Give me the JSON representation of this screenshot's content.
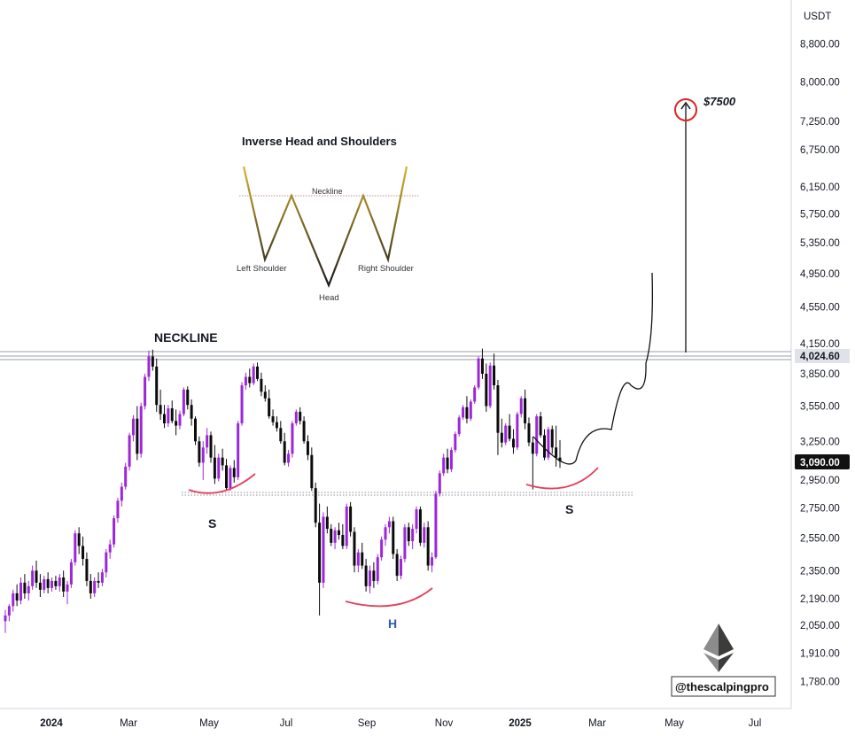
{
  "chart_data": {
    "type": "candlestick",
    "price_axis": {
      "unit_label": "USDT",
      "ticks": [
        "8,800.00",
        "8,000.00",
        "7,250.00",
        "6,750.00",
        "6,150.00",
        "5,750.00",
        "5,350.00",
        "4,950.00",
        "4,550.00",
        "4,150.00",
        "3,850.00",
        "3,550.00",
        "3,250.00",
        "2,950.00",
        "2,750.00",
        "2,550.00",
        "2,350.00",
        "2,190.00",
        "2,050.00",
        "1,910.00",
        "1,780.00"
      ],
      "scale": "log",
      "range": [
        1700,
        9300
      ]
    },
    "time_axis": {
      "ticks": [
        {
          "label": "2024",
          "bold": true
        },
        {
          "label": "Mar",
          "bold": false
        },
        {
          "label": "May",
          "bold": false
        },
        {
          "label": "Jul",
          "bold": false
        },
        {
          "label": "Sep",
          "bold": false
        },
        {
          "label": "Nov",
          "bold": false
        },
        {
          "label": "2025",
          "bold": true
        },
        {
          "label": "Mar",
          "bold": false
        },
        {
          "label": "May",
          "bold": false
        },
        {
          "label": "Jul",
          "bold": false
        }
      ]
    },
    "price_labels": {
      "neckline": "4,024.60",
      "last": "3,090.00"
    },
    "neckline_price": 4024.6,
    "target_price": 7500,
    "support_price": 2860,
    "candles": [
      [
        2070,
        2130,
        2010,
        2100
      ],
      [
        2100,
        2160,
        2070,
        2150
      ],
      [
        2150,
        2240,
        2120,
        2220
      ],
      [
        2220,
        2270,
        2150,
        2180
      ],
      [
        2180,
        2310,
        2160,
        2280
      ],
      [
        2280,
        2330,
        2190,
        2220
      ],
      [
        2220,
        2290,
        2180,
        2260
      ],
      [
        2260,
        2380,
        2240,
        2350
      ],
      [
        2350,
        2410,
        2250,
        2280
      ],
      [
        2280,
        2330,
        2200,
        2240
      ],
      [
        2240,
        2320,
        2220,
        2300
      ],
      [
        2300,
        2340,
        2220,
        2250
      ],
      [
        2250,
        2310,
        2230,
        2290
      ],
      [
        2290,
        2320,
        2240,
        2260
      ],
      [
        2260,
        2330,
        2230,
        2310
      ],
      [
        2310,
        2350,
        2200,
        2230
      ],
      [
        2230,
        2290,
        2160,
        2270
      ],
      [
        2270,
        2420,
        2250,
        2400
      ],
      [
        2400,
        2600,
        2380,
        2580
      ],
      [
        2580,
        2620,
        2450,
        2500
      ],
      [
        2500,
        2560,
        2380,
        2420
      ],
      [
        2420,
        2460,
        2260,
        2290
      ],
      [
        2290,
        2330,
        2190,
        2220
      ],
      [
        2220,
        2310,
        2200,
        2290
      ],
      [
        2290,
        2340,
        2250,
        2280
      ],
      [
        2280,
        2360,
        2260,
        2340
      ],
      [
        2340,
        2480,
        2310,
        2460
      ],
      [
        2460,
        2540,
        2420,
        2510
      ],
      [
        2510,
        2700,
        2490,
        2680
      ],
      [
        2680,
        2820,
        2650,
        2800
      ],
      [
        2800,
        2930,
        2760,
        2900
      ],
      [
        2900,
        3080,
        2880,
        3050
      ],
      [
        3050,
        3320,
        3020,
        3300
      ],
      [
        3300,
        3470,
        3250,
        3440
      ],
      [
        3440,
        3550,
        3100,
        3150
      ],
      [
        3150,
        3580,
        3120,
        3550
      ],
      [
        3550,
        3850,
        3520,
        3820
      ],
      [
        3820,
        4080,
        3780,
        4020
      ],
      [
        4020,
        4090,
        3880,
        3920
      ],
      [
        3920,
        4000,
        3500,
        3560
      ],
      [
        3560,
        3700,
        3430,
        3480
      ],
      [
        3480,
        3560,
        3360,
        3400
      ],
      [
        3400,
        3560,
        3370,
        3530
      ],
      [
        3530,
        3600,
        3400,
        3420
      ],
      [
        3420,
        3520,
        3300,
        3380
      ],
      [
        3380,
        3510,
        3350,
        3480
      ],
      [
        3480,
        3720,
        3460,
        3700
      ],
      [
        3700,
        3730,
        3520,
        3560
      ],
      [
        3560,
        3610,
        3380,
        3440
      ],
      [
        3440,
        3460,
        3220,
        3250
      ],
      [
        3250,
        3290,
        3050,
        3080
      ],
      [
        3080,
        3250,
        2950,
        3200
      ],
      [
        3200,
        3360,
        3150,
        3300
      ],
      [
        3300,
        3330,
        3080,
        3120
      ],
      [
        3120,
        3220,
        2920,
        2960
      ],
      [
        2960,
        3150,
        2940,
        3120
      ],
      [
        3120,
        3190,
        3020,
        3060
      ],
      [
        3060,
        3110,
        2870,
        2890
      ],
      [
        2890,
        3060,
        2870,
        3040
      ],
      [
        3040,
        3100,
        2930,
        2970
      ],
      [
        2970,
        3420,
        2950,
        3400
      ],
      [
        3400,
        3770,
        3380,
        3740
      ],
      [
        3740,
        3860,
        3700,
        3820
      ],
      [
        3820,
        3900,
        3720,
        3760
      ],
      [
        3760,
        3950,
        3740,
        3920
      ],
      [
        3920,
        3960,
        3780,
        3800
      ],
      [
        3800,
        3860,
        3640,
        3680
      ],
      [
        3680,
        3740,
        3590,
        3620
      ],
      [
        3620,
        3700,
        3440,
        3460
      ],
      [
        3460,
        3520,
        3380,
        3410
      ],
      [
        3410,
        3460,
        3330,
        3360
      ],
      [
        3360,
        3420,
        3230,
        3250
      ],
      [
        3250,
        3320,
        3060,
        3080
      ],
      [
        3080,
        3180,
        3050,
        3150
      ],
      [
        3150,
        3420,
        3120,
        3400
      ],
      [
        3400,
        3520,
        3380,
        3500
      ],
      [
        3500,
        3540,
        3390,
        3420
      ],
      [
        3420,
        3460,
        3230,
        3250
      ],
      [
        3250,
        3300,
        3100,
        3140
      ],
      [
        3140,
        3200,
        2870,
        2890
      ],
      [
        2890,
        2930,
        2620,
        2650
      ],
      [
        2650,
        2780,
        2100,
        2280
      ],
      [
        2280,
        2720,
        2250,
        2690
      ],
      [
        2690,
        2760,
        2580,
        2610
      ],
      [
        2610,
        2640,
        2500,
        2520
      ],
      [
        2520,
        2620,
        2480,
        2600
      ],
      [
        2600,
        2650,
        2540,
        2570
      ],
      [
        2570,
        2640,
        2480,
        2500
      ],
      [
        2500,
        2780,
        2480,
        2760
      ],
      [
        2760,
        2790,
        2560,
        2590
      ],
      [
        2590,
        2620,
        2340,
        2380
      ],
      [
        2380,
        2480,
        2340,
        2460
      ],
      [
        2460,
        2520,
        2360,
        2380
      ],
      [
        2380,
        2420,
        2230,
        2260
      ],
      [
        2260,
        2380,
        2220,
        2350
      ],
      [
        2350,
        2400,
        2250,
        2290
      ],
      [
        2290,
        2450,
        2270,
        2430
      ],
      [
        2430,
        2560,
        2410,
        2540
      ],
      [
        2540,
        2640,
        2500,
        2620
      ],
      [
        2620,
        2690,
        2580,
        2660
      ],
      [
        2660,
        2690,
        2420,
        2450
      ],
      [
        2450,
        2480,
        2290,
        2320
      ],
      [
        2320,
        2440,
        2300,
        2420
      ],
      [
        2420,
        2640,
        2400,
        2620
      ],
      [
        2620,
        2650,
        2500,
        2530
      ],
      [
        2530,
        2640,
        2480,
        2610
      ],
      [
        2610,
        2760,
        2580,
        2740
      ],
      [
        2740,
        2760,
        2500,
        2520
      ],
      [
        2520,
        2650,
        2490,
        2620
      ],
      [
        2620,
        2660,
        2350,
        2380
      ],
      [
        2380,
        2460,
        2340,
        2430
      ],
      [
        2430,
        2870,
        2420,
        2850
      ],
      [
        2850,
        3020,
        2830,
        3000
      ],
      [
        3000,
        3150,
        2980,
        3120
      ],
      [
        3120,
        3190,
        3000,
        3030
      ],
      [
        3030,
        3200,
        3010,
        3180
      ],
      [
        3180,
        3330,
        3160,
        3310
      ],
      [
        3310,
        3470,
        3290,
        3450
      ],
      [
        3450,
        3560,
        3430,
        3540
      ],
      [
        3540,
        3640,
        3400,
        3440
      ],
      [
        3440,
        3610,
        3420,
        3590
      ],
      [
        3590,
        3740,
        3570,
        3720
      ],
      [
        3720,
        4020,
        3700,
        4000
      ],
      [
        4000,
        4100,
        3800,
        3850
      ],
      [
        3850,
        3950,
        3500,
        3550
      ],
      [
        3550,
        3960,
        3530,
        3930
      ],
      [
        3930,
        4050,
        3700,
        3740
      ],
      [
        3740,
        3790,
        3140,
        3320
      ],
      [
        3320,
        3440,
        3200,
        3240
      ],
      [
        3240,
        3400,
        3220,
        3380
      ],
      [
        3380,
        3480,
        3250,
        3270
      ],
      [
        3270,
        3350,
        3150,
        3200
      ],
      [
        3200,
        3500,
        3180,
        3480
      ],
      [
        3480,
        3640,
        3450,
        3620
      ],
      [
        3620,
        3700,
        3350,
        3400
      ],
      [
        3400,
        3450,
        3210,
        3240
      ],
      [
        3240,
        3290,
        2880,
        3150
      ],
      [
        3150,
        3480,
        3130,
        3460
      ],
      [
        3460,
        3500,
        3280,
        3300
      ],
      [
        3300,
        3350,
        3100,
        3120
      ],
      [
        3120,
        3370,
        3100,
        3350
      ],
      [
        3350,
        3380,
        3150,
        3200
      ],
      [
        3200,
        3380,
        3050,
        3120
      ],
      [
        3120,
        3260,
        3040,
        3090
      ]
    ]
  },
  "annotations": {
    "neckline_label": "NECKLINE",
    "left_shoulder_label": "S",
    "head_label": "H",
    "right_shoulder_label": "S",
    "target_label": "$7500",
    "watermark_handle": "@thescalpingpro"
  },
  "pattern_inset": {
    "title": "Inverse Head and Shoulders",
    "neckline_label": "Neckline",
    "left_shoulder_label": "Left Shoulder",
    "head_label": "Head",
    "right_shoulder_label": "Right Shoulder"
  },
  "colors": {
    "bull_candle": "#9c27d9",
    "bear_candle": "#0c0c0c",
    "curve_red": "#e2415a",
    "target_red": "#e02424",
    "head_label_blue": "#2b59c3",
    "inset_gold": "#c9a227"
  },
  "icons": {
    "watermark": "ethereum-diamond-icon"
  }
}
